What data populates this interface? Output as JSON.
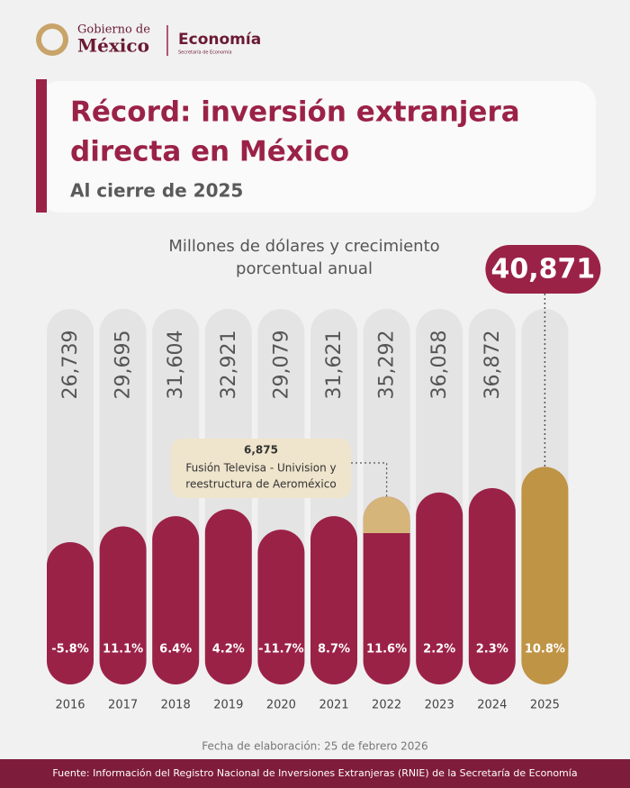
{
  "header": {
    "logo_line1": "Gobierno de",
    "logo_line2": "México",
    "department": "Economía",
    "department_sub": "Secretaría de Economía"
  },
  "chart_data": {
    "type": "bar",
    "title": [
      "Récord: inversión extranjera",
      "directa en México"
    ],
    "subtitle": "Al cierre de 2025",
    "unit_label": [
      "Millones de dólares y crecimiento",
      "porcentual anual"
    ],
    "categories": [
      "2016",
      "2017",
      "2018",
      "2019",
      "2020",
      "2021",
      "2022",
      "2023",
      "2024",
      "2025"
    ],
    "values": [
      26739,
      29695,
      31604,
      32921,
      29079,
      31621,
      35292,
      36058,
      36872,
      40871
    ],
    "value_labels": [
      "26,739",
      "29,695",
      "31,604",
      "32,921",
      "29,079",
      "31,621",
      "35,292",
      "36,058",
      "36,872",
      "40,871"
    ],
    "colors": [
      "#9b2247",
      "#9b2247",
      "#9b2247",
      "#9b2247",
      "#9b2247",
      "#9b2247",
      "#9b2247",
      "#9b2247",
      "#9b2247",
      "#bf9445"
    ],
    "growth": {
      "values": [
        -5.8,
        11.1,
        6.4,
        4.2,
        -11.7,
        8.7,
        11.6,
        2.2,
        2.3,
        10.8
      ],
      "value_labels": [
        "-5.8%",
        "11.1%",
        "6.4%",
        "4.2%",
        "-11.7%",
        "8.7%",
        "11.6%",
        "2.2%",
        "2.3%",
        "10.8%"
      ]
    },
    "annotation": {
      "category": "2022",
      "value": 6875,
      "label": "6,875",
      "text": [
        "Fusión Televisa - Univision y",
        "reestructura de Aeroméxico"
      ],
      "color": "#d6b57a"
    },
    "ylim": [
      0,
      45000
    ]
  },
  "footer": {
    "date": "Fecha de elaboración: 25 de febrero 2026",
    "source": "Fuente: Información del Registro Nacional de Inversiones Extranjeras (RNIE) de la Secretaría de Economía"
  }
}
